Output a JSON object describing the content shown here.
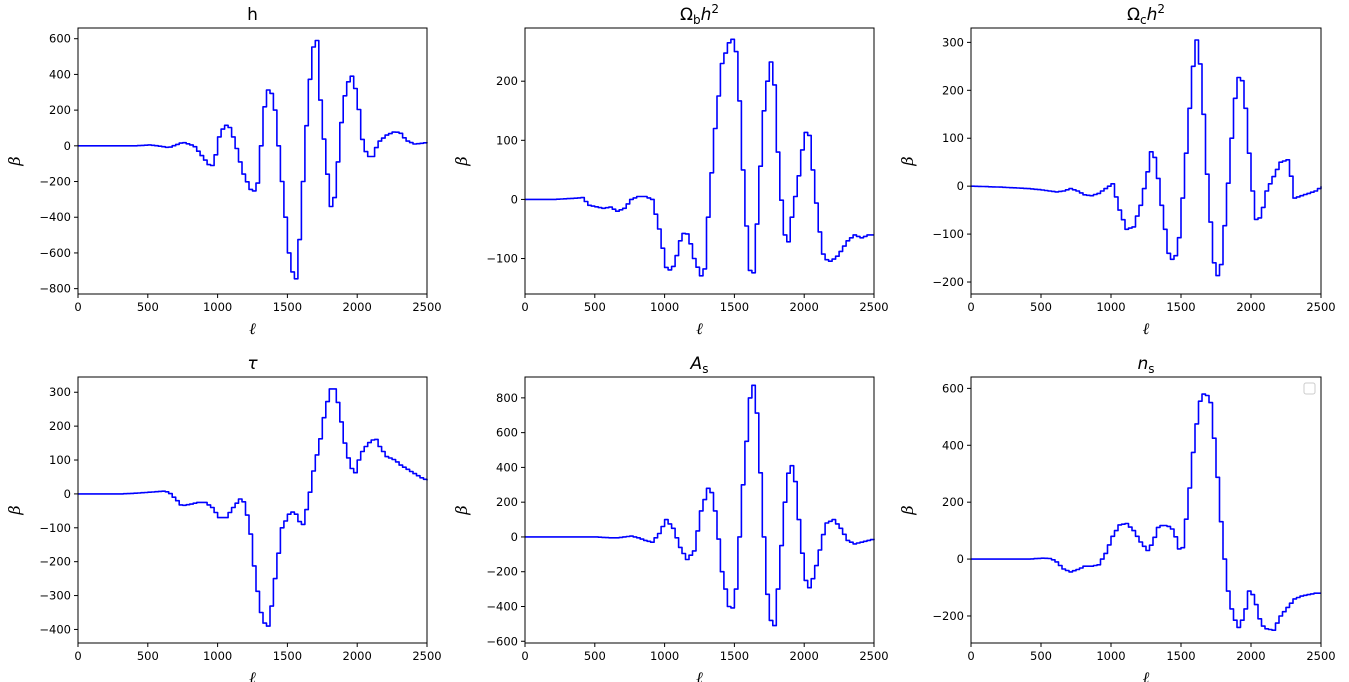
{
  "figure": {
    "line_color": "#0000ff"
  },
  "chart_data": [
    {
      "type": "line",
      "title": "h",
      "title_parts": [
        {
          "t": "h"
        }
      ],
      "xlabel": "ℓ",
      "ylabel": "β",
      "xlim": [
        0,
        2500
      ],
      "ylim": [
        -830,
        660
      ],
      "xticks": [
        0,
        500,
        1000,
        1500,
        2000,
        2500
      ],
      "yticks": [
        -800,
        -600,
        -400,
        -200,
        0,
        200,
        400,
        600
      ],
      "legend": false,
      "series": [
        {
          "step": 25,
          "x": [
            0,
            300,
            400,
            500,
            560,
            640,
            740,
            820,
            880,
            930,
            960,
            1000,
            1040,
            1080,
            1120,
            1170,
            1240,
            1280,
            1320,
            1360,
            1400,
            1450,
            1500,
            1540,
            1560,
            1600,
            1640,
            1680,
            1700,
            1720,
            1760,
            1800,
            1830,
            1870,
            1910,
            1950,
            1990,
            2020,
            2060,
            2100,
            2140,
            2200,
            2260,
            2300,
            2340,
            2400,
            2460,
            2500
          ],
          "y": [
            0,
            0,
            0,
            5,
            0,
            -10,
            20,
            0,
            -60,
            -110,
            -110,
            50,
            120,
            100,
            0,
            -150,
            -270,
            -200,
            200,
            350,
            200,
            -200,
            -600,
            -770,
            -720,
            -200,
            300,
            590,
            590,
            300,
            -50,
            -340,
            -280,
            100,
            340,
            390,
            280,
            50,
            -60,
            -60,
            20,
            60,
            80,
            70,
            30,
            10,
            15,
            20
          ]
        }
      ]
    },
    {
      "type": "line",
      "title": "Ω_b h^2",
      "title_parts": [
        {
          "t": "Ω"
        },
        {
          "t": "b",
          "sub": true
        },
        {
          "t": "h",
          "it": true
        },
        {
          "t": "2",
          "sup": true
        }
      ],
      "xlabel": "ℓ",
      "ylabel": "β",
      "xlim": [
        0,
        2500
      ],
      "ylim": [
        -160,
        290
      ],
      "xticks": [
        0,
        500,
        1000,
        1500,
        2000,
        2500
      ],
      "yticks": [
        -100,
        0,
        100,
        200
      ],
      "legend": false,
      "series": [
        {
          "step": 25,
          "x": [
            0,
            200,
            350,
            400,
            450,
            550,
            600,
            650,
            700,
            750,
            800,
            850,
            900,
            950,
            1000,
            1030,
            1060,
            1100,
            1130,
            1160,
            1200,
            1260,
            1270,
            1300,
            1350,
            1400,
            1450,
            1480,
            1500,
            1530,
            1560,
            1600,
            1630,
            1660,
            1700,
            1740,
            1760,
            1780,
            1800,
            1840,
            1870,
            1900,
            1950,
            1990,
            2020,
            2050,
            2090,
            2130,
            2180,
            2230,
            2300,
            2350,
            2400,
            2450,
            2500
          ],
          "y": [
            0,
            0,
            2,
            3,
            -10,
            -15,
            -13,
            -20,
            -15,
            0,
            5,
            5,
            0,
            -50,
            -115,
            -120,
            -110,
            -70,
            -55,
            -60,
            -100,
            -135,
            -135,
            -30,
            120,
            230,
            265,
            272,
            250,
            150,
            0,
            -120,
            -125,
            0,
            150,
            230,
            235,
            180,
            80,
            -50,
            -80,
            -30,
            40,
            110,
            120,
            50,
            -40,
            -100,
            -105,
            -95,
            -70,
            -60,
            -65,
            -60,
            -60
          ]
        }
      ]
    },
    {
      "type": "line",
      "title": "Ω_c h^2",
      "title_parts": [
        {
          "t": "Ω"
        },
        {
          "t": "c",
          "sub": true
        },
        {
          "t": "h",
          "it": true
        },
        {
          "t": "2",
          "sup": true
        }
      ],
      "xlabel": "ℓ",
      "ylabel": "β",
      "xlim": [
        0,
        2500
      ],
      "ylim": [
        -225,
        330
      ],
      "xticks": [
        0,
        500,
        1000,
        1500,
        2000,
        2500
      ],
      "yticks": [
        -200,
        -100,
        0,
        100,
        200,
        300
      ],
      "legend": false,
      "series": [
        {
          "step": 25,
          "x": [
            0,
            200,
            400,
            500,
            600,
            650,
            700,
            750,
            800,
            850,
            900,
            950,
            1000,
            1050,
            1100,
            1150,
            1200,
            1250,
            1280,
            1310,
            1350,
            1400,
            1440,
            1480,
            1520,
            1560,
            1590,
            1610,
            1640,
            1680,
            1720,
            1740,
            1770,
            1810,
            1850,
            1880,
            1910,
            1940,
            1980,
            2020,
            2060,
            2100,
            2150,
            2200,
            2250,
            2270,
            2300,
            2350,
            2400,
            2450,
            2500
          ],
          "y": [
            0,
            -2,
            -5,
            -8,
            -12,
            -10,
            -5,
            -10,
            -18,
            -20,
            -15,
            -5,
            5,
            -50,
            -90,
            -85,
            -40,
            30,
            80,
            50,
            -40,
            -140,
            -160,
            -100,
            50,
            200,
            300,
            310,
            200,
            0,
            -150,
            -190,
            -180,
            -50,
            100,
            200,
            240,
            200,
            50,
            -70,
            -65,
            -10,
            20,
            50,
            55,
            30,
            -25,
            -20,
            -15,
            -10,
            0
          ]
        }
      ]
    },
    {
      "type": "line",
      "title": "τ",
      "title_parts": [
        {
          "t": "τ",
          "it": true
        }
      ],
      "xlabel": "ℓ",
      "ylabel": "β",
      "xlim": [
        0,
        2500
      ],
      "ylim": [
        -440,
        345
      ],
      "xticks": [
        0,
        500,
        1000,
        1500,
        2000,
        2500
      ],
      "yticks": [
        -400,
        -300,
        -200,
        -100,
        0,
        100,
        200,
        300
      ],
      "legend": false,
      "series": [
        {
          "step": 25,
          "x": [
            0,
            300,
            400,
            500,
            600,
            640,
            700,
            730,
            800,
            850,
            900,
            950,
            1000,
            1050,
            1100,
            1150,
            1180,
            1220,
            1260,
            1300,
            1340,
            1360,
            1400,
            1450,
            1500,
            1540,
            1570,
            1600,
            1640,
            1680,
            1720,
            1760,
            1800,
            1830,
            1860,
            1900,
            1940,
            1980,
            2000,
            2030,
            2070,
            2120,
            2150,
            2200,
            2260,
            2300,
            2360,
            2400,
            2460,
            2500
          ],
          "y": [
            0,
            0,
            2,
            5,
            8,
            5,
            -20,
            -35,
            -30,
            -25,
            -25,
            -40,
            -70,
            -70,
            -40,
            -15,
            -25,
            -100,
            -250,
            -350,
            -400,
            -380,
            -250,
            -100,
            -60,
            -50,
            -80,
            -90,
            -20,
            80,
            150,
            250,
            310,
            310,
            250,
            150,
            80,
            60,
            100,
            130,
            150,
            165,
            140,
            110,
            100,
            85,
            70,
            60,
            45,
            40
          ]
        }
      ]
    },
    {
      "type": "line",
      "title": "A_s",
      "title_parts": [
        {
          "t": "A",
          "it": true
        },
        {
          "t": "s",
          "sub": true
        }
      ],
      "xlabel": "ℓ",
      "ylabel": "β",
      "xlim": [
        0,
        2500
      ],
      "ylim": [
        -610,
        920
      ],
      "xticks": [
        0,
        500,
        1000,
        1500,
        2000,
        2500
      ],
      "yticks": [
        -600,
        -400,
        -200,
        0,
        200,
        400,
        600,
        800
      ],
      "legend": false,
      "series": [
        {
          "step": 25,
          "x": [
            0,
            400,
            500,
            600,
            650,
            700,
            750,
            800,
            850,
            900,
            950,
            1000,
            1050,
            1100,
            1150,
            1200,
            1250,
            1300,
            1330,
            1360,
            1400,
            1450,
            1480,
            1500,
            1550,
            1600,
            1620,
            1640,
            1680,
            1720,
            1760,
            1780,
            1800,
            1850,
            1880,
            1900,
            1930,
            1960,
            2000,
            2030,
            2080,
            2120,
            2150,
            2200,
            2250,
            2300,
            2350,
            2400,
            2450,
            2500
          ],
          "y": [
            0,
            0,
            0,
            -5,
            -5,
            0,
            5,
            -5,
            -20,
            -30,
            20,
            100,
            50,
            -60,
            -130,
            -80,
            150,
            280,
            250,
            100,
            -200,
            -400,
            -410,
            -300,
            300,
            800,
            880,
            850,
            300,
            -300,
            -540,
            -500,
            -300,
            200,
            400,
            410,
            300,
            0,
            -250,
            -300,
            -150,
            0,
            80,
            100,
            50,
            -20,
            -40,
            -30,
            -20,
            -10
          ]
        }
      ]
    },
    {
      "type": "line",
      "title": "n_s",
      "title_parts": [
        {
          "t": "n",
          "it": true
        },
        {
          "t": "s",
          "sub": true
        }
      ],
      "xlabel": "ℓ",
      "ylabel": "β",
      "xlim": [
        0,
        2500
      ],
      "ylim": [
        -295,
        640
      ],
      "xticks": [
        0,
        500,
        1000,
        1500,
        2000,
        2500
      ],
      "yticks": [
        -200,
        0,
        200,
        400,
        600
      ],
      "legend": true,
      "series": [
        {
          "step": 25,
          "x": [
            0,
            300,
            400,
            500,
            560,
            600,
            650,
            700,
            760,
            800,
            850,
            900,
            950,
            1000,
            1050,
            1100,
            1150,
            1200,
            1250,
            1290,
            1320,
            1360,
            1400,
            1440,
            1470,
            1500,
            1540,
            1580,
            1620,
            1660,
            1700,
            1740,
            1780,
            1820,
            1860,
            1900,
            1940,
            1980,
            2020,
            2060,
            2100,
            2150,
            2200,
            2250,
            2300,
            2350,
            2400,
            2450,
            2500
          ],
          "y": [
            0,
            0,
            0,
            3,
            2,
            -10,
            -35,
            -45,
            -35,
            -25,
            -25,
            -20,
            20,
            80,
            120,
            125,
            100,
            60,
            30,
            60,
            110,
            120,
            115,
            100,
            35,
            40,
            200,
            400,
            550,
            590,
            550,
            350,
            100,
            -100,
            -200,
            -240,
            -200,
            -100,
            -150,
            -230,
            -245,
            -250,
            -200,
            -170,
            -140,
            -130,
            -125,
            -120,
            -120
          ]
        }
      ]
    }
  ]
}
